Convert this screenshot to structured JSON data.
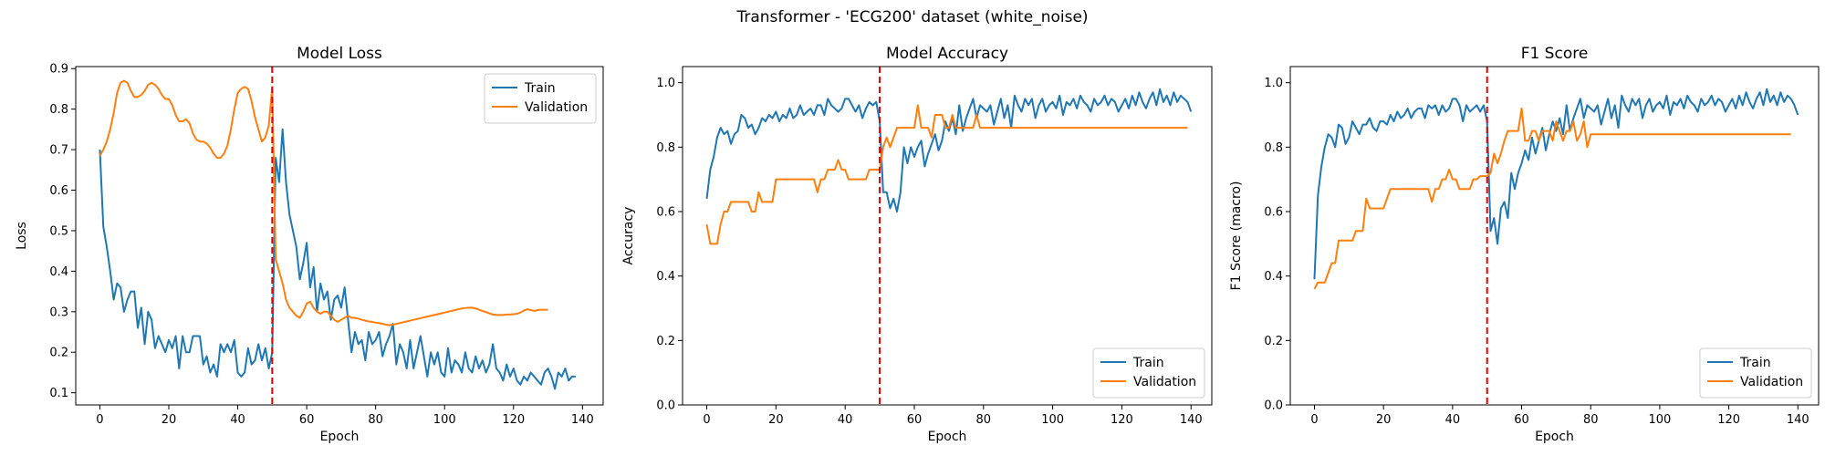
{
  "suptitle": "Transformer - 'ECG200' dataset (white_noise)",
  "colors": {
    "train": "#1f77b4",
    "validation": "#ff7f0e",
    "marker": "#e00000"
  },
  "chart_data": [
    {
      "type": "line",
      "title": "Model Loss",
      "xlabel": "Epoch",
      "ylabel": "Loss",
      "xlim": [
        -7,
        146
      ],
      "ylim": [
        0.07,
        0.905
      ],
      "xticks": [
        0,
        20,
        40,
        60,
        80,
        100,
        120,
        140
      ],
      "yticks": [
        0.1,
        0.2,
        0.3,
        0.4,
        0.5,
        0.6,
        0.7,
        0.8,
        0.9
      ],
      "ytick_format": 1,
      "vline": 50,
      "legend": "top-right",
      "series": [
        {
          "name": "Train",
          "color_key": "train",
          "values": [
            0.7,
            0.51,
            0.46,
            0.4,
            0.33,
            0.37,
            0.36,
            0.3,
            0.33,
            0.35,
            0.35,
            0.26,
            0.31,
            0.22,
            0.3,
            0.28,
            0.21,
            0.24,
            0.22,
            0.2,
            0.23,
            0.21,
            0.24,
            0.16,
            0.24,
            0.2,
            0.2,
            0.24,
            0.24,
            0.24,
            0.17,
            0.19,
            0.15,
            0.17,
            0.14,
            0.22,
            0.2,
            0.22,
            0.2,
            0.23,
            0.15,
            0.14,
            0.15,
            0.21,
            0.17,
            0.18,
            0.22,
            0.18,
            0.21,
            0.16,
            0.2,
            0.68,
            0.62,
            0.75,
            0.62,
            0.54,
            0.5,
            0.46,
            0.38,
            0.42,
            0.47,
            0.36,
            0.41,
            0.3,
            0.37,
            0.33,
            0.35,
            0.28,
            0.33,
            0.34,
            0.31,
            0.36,
            0.28,
            0.2,
            0.25,
            0.22,
            0.23,
            0.18,
            0.25,
            0.22,
            0.23,
            0.25,
            0.19,
            0.22,
            0.24,
            0.27,
            0.17,
            0.22,
            0.2,
            0.16,
            0.23,
            0.16,
            0.2,
            0.24,
            0.19,
            0.14,
            0.2,
            0.17,
            0.2,
            0.15,
            0.14,
            0.21,
            0.15,
            0.18,
            0.17,
            0.15,
            0.2,
            0.16,
            0.15,
            0.19,
            0.16,
            0.18,
            0.15,
            0.17,
            0.22,
            0.16,
            0.15,
            0.13,
            0.17,
            0.14,
            0.16,
            0.13,
            0.12,
            0.14,
            0.13,
            0.15,
            0.14,
            0.13,
            0.12,
            0.15,
            0.16,
            0.14,
            0.11,
            0.15,
            0.14,
            0.16,
            0.13,
            0.14,
            0.14
          ]
        },
        {
          "name": "Validation",
          "color_key": "validation",
          "values": [
            0.685,
            0.7,
            0.72,
            0.75,
            0.79,
            0.84,
            0.865,
            0.87,
            0.865,
            0.845,
            0.83,
            0.83,
            0.835,
            0.845,
            0.86,
            0.865,
            0.86,
            0.85,
            0.835,
            0.825,
            0.825,
            0.81,
            0.785,
            0.77,
            0.77,
            0.775,
            0.765,
            0.74,
            0.725,
            0.72,
            0.72,
            0.715,
            0.705,
            0.69,
            0.68,
            0.68,
            0.69,
            0.71,
            0.75,
            0.8,
            0.84,
            0.85,
            0.855,
            0.85,
            0.82,
            0.78,
            0.75,
            0.72,
            0.73,
            0.76,
            0.855,
            0.43,
            0.4,
            0.37,
            0.33,
            0.31,
            0.3,
            0.29,
            0.285,
            0.3,
            0.32,
            0.325,
            0.31,
            0.3,
            0.295,
            0.3,
            0.3,
            0.29,
            0.28,
            0.275,
            0.28,
            0.285,
            0.29,
            0.285,
            0.285,
            0.283,
            0.28,
            0.278,
            0.276,
            0.275,
            0.273,
            0.272,
            0.27,
            0.268,
            0.267,
            0.268,
            0.27,
            0.272,
            0.274,
            0.276,
            0.278,
            0.28,
            0.282,
            0.284,
            0.286,
            0.288,
            0.29,
            0.292,
            0.294,
            0.296,
            0.298,
            0.3,
            0.302,
            0.304,
            0.306,
            0.308,
            0.309,
            0.31,
            0.31,
            0.308,
            0.305,
            0.302,
            0.299,
            0.296,
            0.293,
            0.292,
            0.292,
            0.292,
            0.293,
            0.293,
            0.294,
            0.295,
            0.298,
            0.303,
            0.306,
            0.304,
            0.302,
            0.304,
            0.305,
            0.305,
            0.305
          ]
        }
      ]
    },
    {
      "type": "line",
      "title": "Model Accuracy",
      "xlabel": "Epoch",
      "ylabel": "Accuracy",
      "xlim": [
        -7,
        146
      ],
      "ylim": [
        0,
        1.05
      ],
      "xticks": [
        0,
        20,
        40,
        60,
        80,
        100,
        120,
        140
      ],
      "yticks": [
        0.0,
        0.2,
        0.4,
        0.6,
        0.8,
        1.0
      ],
      "ytick_format": 1,
      "vline": 50,
      "legend": "bottom-right",
      "series": [
        {
          "name": "Train",
          "color_key": "train",
          "values": [
            0.64,
            0.73,
            0.77,
            0.83,
            0.86,
            0.84,
            0.85,
            0.81,
            0.84,
            0.85,
            0.9,
            0.89,
            0.86,
            0.87,
            0.84,
            0.86,
            0.89,
            0.88,
            0.9,
            0.89,
            0.91,
            0.88,
            0.9,
            0.89,
            0.92,
            0.89,
            0.9,
            0.93,
            0.9,
            0.91,
            0.92,
            0.9,
            0.93,
            0.93,
            0.9,
            0.95,
            0.93,
            0.92,
            0.91,
            0.92,
            0.95,
            0.95,
            0.93,
            0.91,
            0.93,
            0.89,
            0.92,
            0.94,
            0.93,
            0.94,
            0.88,
            0.66,
            0.66,
            0.61,
            0.64,
            0.6,
            0.66,
            0.8,
            0.75,
            0.8,
            0.77,
            0.8,
            0.82,
            0.74,
            0.78,
            0.81,
            0.84,
            0.79,
            0.82,
            0.88,
            0.85,
            0.89,
            0.84,
            0.93,
            0.85,
            0.89,
            0.92,
            0.95,
            0.89,
            0.93,
            0.92,
            0.91,
            0.93,
            0.87,
            0.91,
            0.95,
            0.89,
            0.93,
            0.86,
            0.96,
            0.93,
            0.91,
            0.95,
            0.93,
            0.95,
            0.89,
            0.93,
            0.95,
            0.91,
            0.93,
            0.94,
            0.92,
            0.96,
            0.9,
            0.94,
            0.93,
            0.95,
            0.92,
            0.96,
            0.94,
            0.93,
            0.91,
            0.95,
            0.93,
            0.94,
            0.96,
            0.93,
            0.95,
            0.94,
            0.91,
            0.93,
            0.95,
            0.92,
            0.96,
            0.93,
            0.97,
            0.94,
            0.92,
            0.95,
            0.97,
            0.93,
            0.98,
            0.94,
            0.96,
            0.93,
            0.97,
            0.94,
            0.96,
            0.95,
            0.94,
            0.91
          ]
        },
        {
          "name": "Validation",
          "color_key": "validation",
          "values": [
            0.56,
            0.5,
            0.5,
            0.5,
            0.56,
            0.6,
            0.6,
            0.63,
            0.63,
            0.63,
            0.63,
            0.63,
            0.63,
            0.6,
            0.6,
            0.66,
            0.63,
            0.63,
            0.63,
            0.63,
            0.7,
            0.7,
            0.7,
            0.7,
            0.7,
            0.7,
            0.7,
            0.7,
            0.7,
            0.7,
            0.7,
            0.7,
            0.66,
            0.7,
            0.7,
            0.73,
            0.73,
            0.73,
            0.76,
            0.73,
            0.73,
            0.7,
            0.7,
            0.7,
            0.7,
            0.7,
            0.7,
            0.73,
            0.73,
            0.73,
            0.73,
            0.8,
            0.83,
            0.8,
            0.83,
            0.86,
            0.86,
            0.86,
            0.86,
            0.86,
            0.86,
            0.93,
            0.86,
            0.86,
            0.86,
            0.83,
            0.9,
            0.9,
            0.9,
            0.86,
            0.86,
            0.9,
            0.86,
            0.86,
            0.86,
            0.86,
            0.86,
            0.86,
            0.9,
            0.86,
            0.86,
            0.86,
            0.86,
            0.86,
            0.86,
            0.86,
            0.86,
            0.86,
            0.86,
            0.86,
            0.86,
            0.86,
            0.86,
            0.86,
            0.86,
            0.86,
            0.86,
            0.86,
            0.86,
            0.86,
            0.86,
            0.86,
            0.86,
            0.86,
            0.86,
            0.86,
            0.86,
            0.86,
            0.86,
            0.86,
            0.86,
            0.86,
            0.86,
            0.86,
            0.86,
            0.86,
            0.86,
            0.86,
            0.86,
            0.86,
            0.86,
            0.86,
            0.86,
            0.86,
            0.86,
            0.86,
            0.86,
            0.86,
            0.86,
            0.86,
            0.86,
            0.86,
            0.86,
            0.86,
            0.86,
            0.86,
            0.86,
            0.86,
            0.86,
            0.86
          ]
        }
      ]
    },
    {
      "type": "line",
      "title": "F1 Score",
      "xlabel": "Epoch",
      "ylabel": "F1 Score (macro)",
      "xlim": [
        -7,
        146
      ],
      "ylim": [
        0,
        1.05
      ],
      "xticks": [
        0,
        20,
        40,
        60,
        80,
        100,
        120,
        140
      ],
      "yticks": [
        0.0,
        0.2,
        0.4,
        0.6,
        0.8,
        1.0
      ],
      "ytick_format": 1,
      "vline": 50,
      "legend": "bottom-right",
      "series": [
        {
          "name": "Train",
          "color_key": "train",
          "values": [
            0.39,
            0.65,
            0.74,
            0.8,
            0.84,
            0.83,
            0.8,
            0.87,
            0.86,
            0.81,
            0.83,
            0.88,
            0.86,
            0.84,
            0.87,
            0.87,
            0.89,
            0.86,
            0.85,
            0.88,
            0.88,
            0.87,
            0.9,
            0.88,
            0.91,
            0.89,
            0.9,
            0.92,
            0.89,
            0.91,
            0.92,
            0.92,
            0.89,
            0.93,
            0.92,
            0.93,
            0.9,
            0.93,
            0.91,
            0.92,
            0.95,
            0.95,
            0.93,
            0.88,
            0.93,
            0.91,
            0.92,
            0.93,
            0.91,
            0.93,
            0.88,
            0.54,
            0.58,
            0.5,
            0.61,
            0.63,
            0.58,
            0.72,
            0.67,
            0.72,
            0.75,
            0.79,
            0.76,
            0.83,
            0.78,
            0.82,
            0.86,
            0.79,
            0.84,
            0.88,
            0.85,
            0.89,
            0.84,
            0.93,
            0.85,
            0.89,
            0.92,
            0.95,
            0.89,
            0.93,
            0.92,
            0.91,
            0.93,
            0.87,
            0.91,
            0.95,
            0.89,
            0.93,
            0.86,
            0.96,
            0.93,
            0.91,
            0.95,
            0.93,
            0.95,
            0.89,
            0.93,
            0.95,
            0.91,
            0.93,
            0.94,
            0.92,
            0.96,
            0.9,
            0.94,
            0.93,
            0.95,
            0.92,
            0.96,
            0.94,
            0.93,
            0.91,
            0.95,
            0.93,
            0.94,
            0.96,
            0.93,
            0.95,
            0.94,
            0.91,
            0.93,
            0.95,
            0.92,
            0.96,
            0.93,
            0.97,
            0.94,
            0.92,
            0.95,
            0.97,
            0.93,
            0.98,
            0.94,
            0.96,
            0.93,
            0.97,
            0.94,
            0.96,
            0.95,
            0.93,
            0.9
          ]
        },
        {
          "name": "Validation",
          "color_key": "validation",
          "values": [
            0.36,
            0.38,
            0.38,
            0.38,
            0.41,
            0.44,
            0.44,
            0.51,
            0.51,
            0.51,
            0.51,
            0.51,
            0.54,
            0.54,
            0.54,
            0.64,
            0.61,
            0.61,
            0.61,
            0.61,
            0.61,
            0.64,
            0.67,
            0.67,
            0.67,
            0.67,
            0.67,
            0.67,
            0.67,
            0.67,
            0.67,
            0.67,
            0.67,
            0.67,
            0.63,
            0.67,
            0.67,
            0.7,
            0.7,
            0.73,
            0.7,
            0.7,
            0.67,
            0.67,
            0.67,
            0.67,
            0.7,
            0.7,
            0.71,
            0.71,
            0.71,
            0.72,
            0.78,
            0.75,
            0.78,
            0.82,
            0.85,
            0.85,
            0.85,
            0.85,
            0.92,
            0.82,
            0.82,
            0.85,
            0.85,
            0.82,
            0.85,
            0.85,
            0.85,
            0.82,
            0.88,
            0.85,
            0.82,
            0.85,
            0.85,
            0.88,
            0.82,
            0.84,
            0.88,
            0.8,
            0.84,
            0.84,
            0.84,
            0.84,
            0.84,
            0.84,
            0.84,
            0.84,
            0.84,
            0.84,
            0.84,
            0.84,
            0.84,
            0.84,
            0.84,
            0.84,
            0.84,
            0.84,
            0.84,
            0.84,
            0.84,
            0.84,
            0.84,
            0.84,
            0.84,
            0.84,
            0.84,
            0.84,
            0.84,
            0.84,
            0.84,
            0.84,
            0.84,
            0.84,
            0.84,
            0.84,
            0.84,
            0.84,
            0.84,
            0.84,
            0.84,
            0.84,
            0.84,
            0.84,
            0.84,
            0.84,
            0.84,
            0.84,
            0.84,
            0.84,
            0.84,
            0.84,
            0.84,
            0.84,
            0.84,
            0.84,
            0.84,
            0.84,
            0.84
          ]
        }
      ]
    }
  ]
}
